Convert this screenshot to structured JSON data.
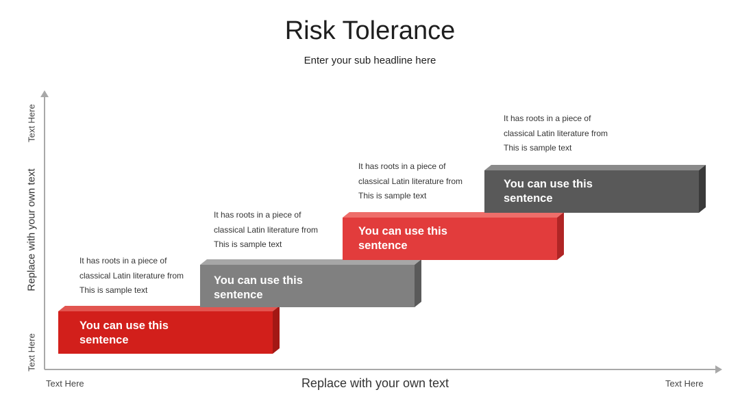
{
  "title": "Risk Tolerance",
  "subtitle": "Enter your sub headline here",
  "axes": {
    "y_top": "Text Here",
    "y_middle": "Replace with your own text",
    "y_bottom": "Text Here",
    "x_left": "Text Here",
    "x_middle": "Replace with your own text",
    "x_right": "Text Here"
  },
  "steps": [
    {
      "label_line1": "You can use this",
      "label_line2": "sentence",
      "desc_line1": "It has roots in a piece of",
      "desc_line2": "classical Latin literature from",
      "desc_line3": "This is sample text",
      "color": "#d21f1b"
    },
    {
      "label_line1": "You can use this",
      "label_line2": "sentence",
      "desc_line1": "It has roots in a piece of",
      "desc_line2": "classical Latin literature from",
      "desc_line3": "This is sample text",
      "color": "#808080"
    },
    {
      "label_line1": "You can use this",
      "label_line2": "sentence",
      "desc_line1": "It has roots in a piece of",
      "desc_line2": "classical Latin literature from",
      "desc_line3": "This is sample text",
      "color": "#e23c3c"
    },
    {
      "label_line1": "You can use this",
      "label_line2": "sentence",
      "desc_line1": "It has roots in a piece of",
      "desc_line2": "classical Latin literature from",
      "desc_line3": "This is sample text",
      "color": "#595959"
    }
  ]
}
